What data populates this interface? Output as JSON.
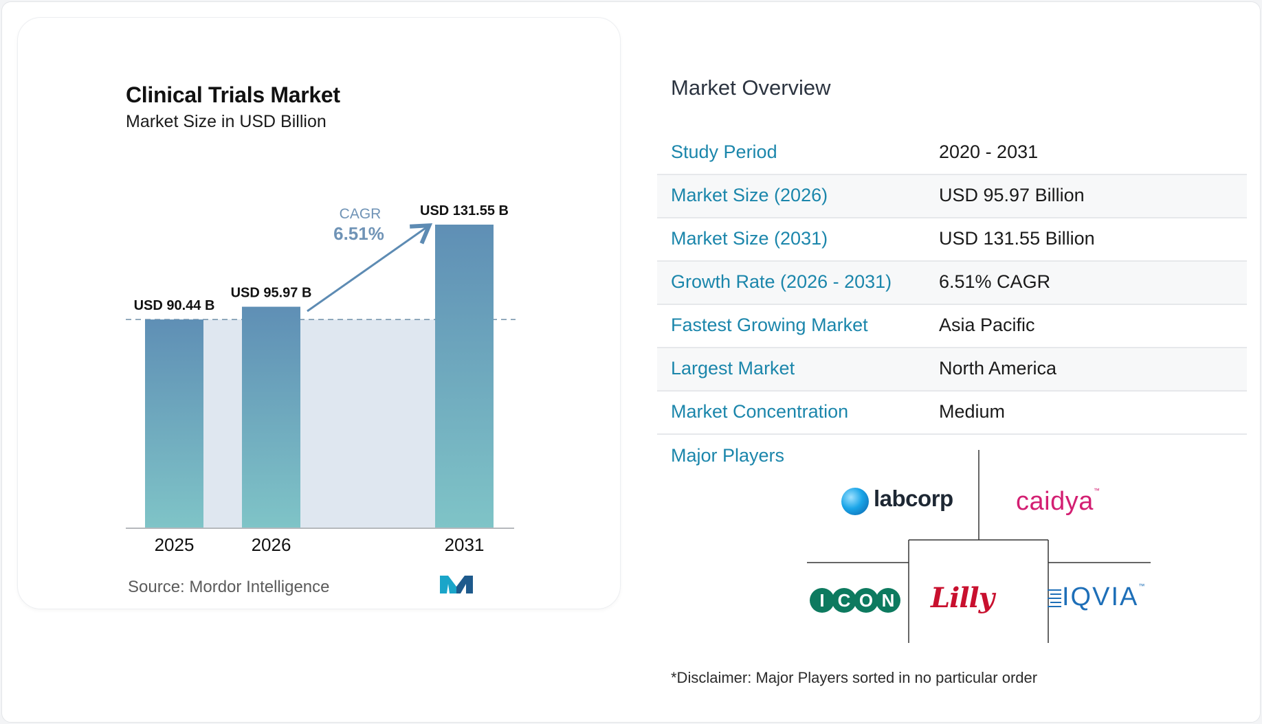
{
  "chart_data": {
    "type": "bar",
    "title": "Clinical Trials Market",
    "subtitle": "Market Size in USD Billion",
    "categories": [
      "2025",
      "2026",
      "2031"
    ],
    "values": [
      90.44,
      95.97,
      131.55
    ],
    "data_labels": [
      "USD 90.44 B",
      "USD 95.97 B",
      "USD 131.55 B"
    ],
    "cagr_label": "CAGR",
    "cagr_value": "6.51%",
    "ylim": [
      0,
      131.55
    ],
    "grid": false,
    "colors": {
      "bar_top": "#5f8fb5",
      "bar_bottom": "#7fc4c7",
      "shade": "#dfe7f0",
      "arrow": "#5d8bb3"
    }
  },
  "source_text": "Source:  Mordor Intelligence",
  "brand_icon": "mordor-intelligence-logo",
  "overview": {
    "title": "Market Overview",
    "rows": [
      {
        "label": "Study Period",
        "value": "2020 - 2031"
      },
      {
        "label": "Market Size (2026)",
        "value": "USD 95.97 Billion"
      },
      {
        "label": "Market Size (2031)",
        "value": "USD 131.55 Billion"
      },
      {
        "label": "Growth Rate (2026 - 2031)",
        "value": "6.51% CAGR"
      },
      {
        "label": "Fastest Growing Market",
        "value": "Asia Pacific"
      },
      {
        "label": "Largest Market",
        "value": "North America"
      },
      {
        "label": "Market Concentration",
        "value": "Medium"
      }
    ],
    "label_color": "#1b86ab"
  },
  "players": {
    "label": "Major Players",
    "labcorp": "labcorp",
    "caidya": "caidya",
    "caidya_tm": "™",
    "icon": "ICON",
    "lilly": "Lilly",
    "iqvia": "IQVIA",
    "iqvia_tm": "™"
  },
  "disclaimer": "*Disclaimer: Major Players sorted in no particular order"
}
